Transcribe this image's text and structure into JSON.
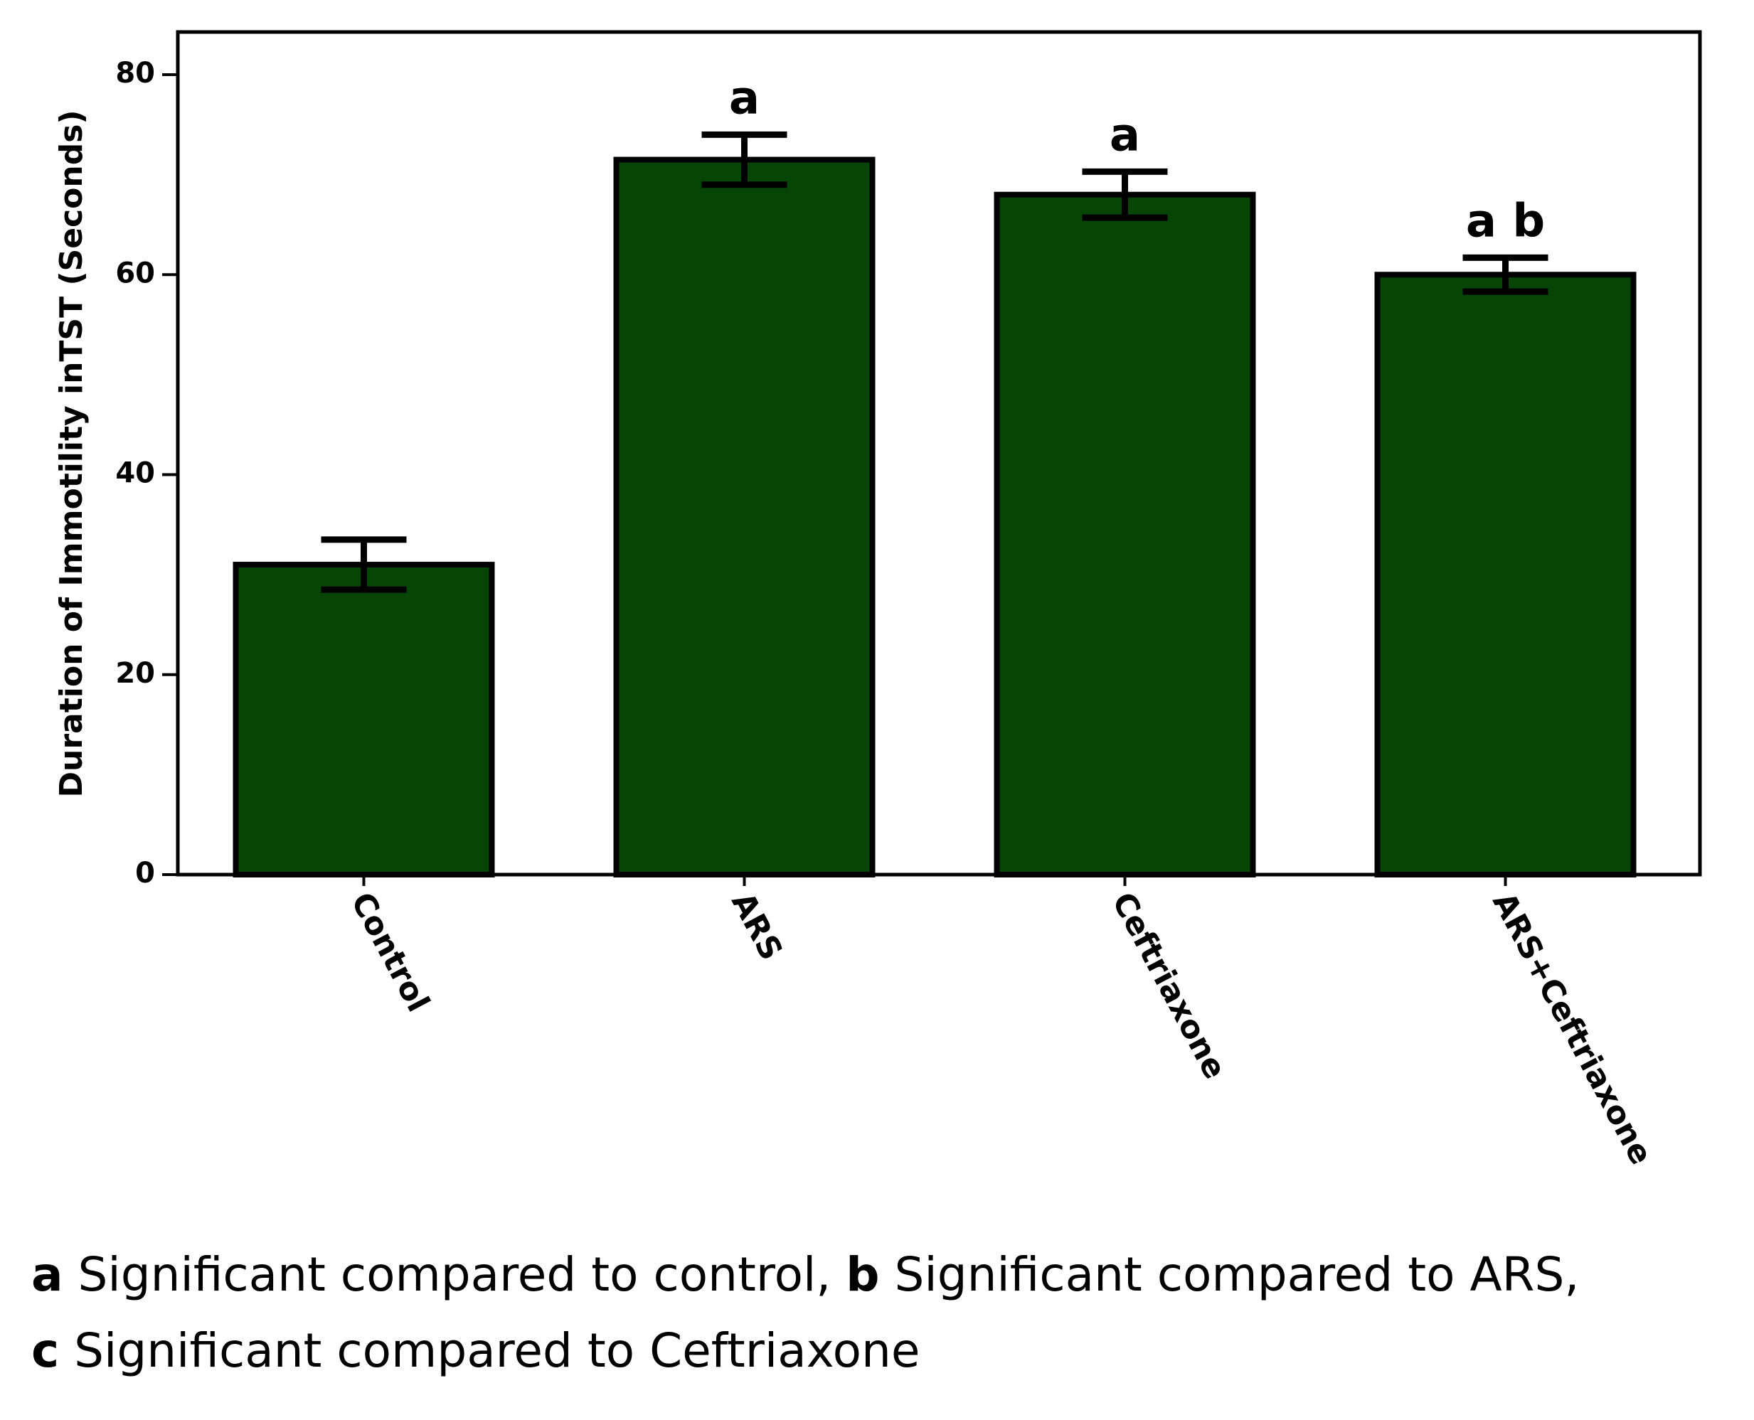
{
  "chart_data": {
    "type": "bar",
    "title": "",
    "xlabel": "",
    "ylabel": "Duration of Immotility inTST (Seconds)",
    "ylim": [
      0,
      80
    ],
    "yticks": [
      0,
      20,
      40,
      60,
      80
    ],
    "grid": false,
    "legend": "none",
    "categories": [
      "Control",
      "ARS",
      "Ceftriaxone",
      "ARS+Ceftriaxone"
    ],
    "values": [
      31,
      71.5,
      68,
      60
    ],
    "error": [
      2.5,
      2.5,
      2.3,
      1.7
    ],
    "annotations": [
      "",
      "a",
      "a",
      "a b"
    ],
    "bar_color": "#064506"
  },
  "footnote": {
    "line1": [
      {
        "key": "a",
        "text": " Significant compared to control, "
      },
      {
        "key": "b",
        "text": " Significant compared to ARS,"
      }
    ],
    "line2": [
      {
        "key": "c",
        "text": " Significant compared to Ceftriaxone"
      }
    ]
  }
}
